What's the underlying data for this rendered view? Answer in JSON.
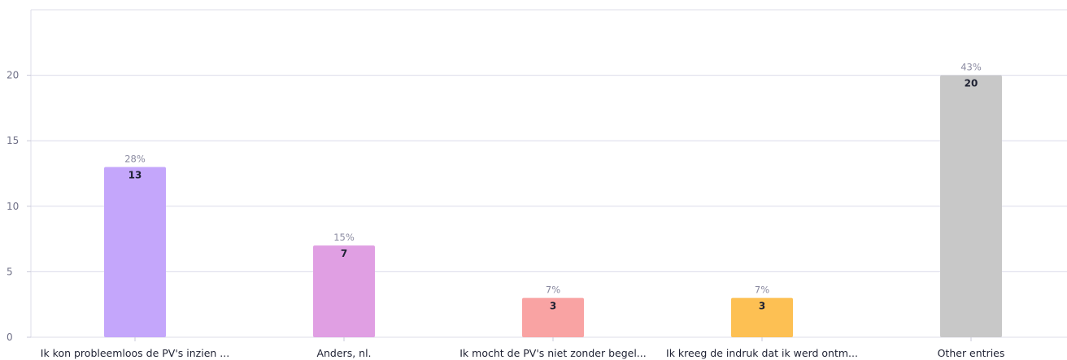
{
  "chart_data": {
    "type": "bar",
    "categories": [
      "Ik kon probleemloos de PV's inzien ...",
      "Anders, nl.",
      "Ik mocht de PV's niet zonder begel...",
      "Ik kreeg de indruk dat ik werd ontm...",
      "Other entries"
    ],
    "values": [
      13,
      7,
      3,
      3,
      20
    ],
    "percentages": [
      "28%",
      "15%",
      "7%",
      "7%",
      "43%"
    ],
    "colors": [
      "#c4a6fb",
      "#e09fe3",
      "#f9a3a3",
      "#fdc053",
      "#c8c8c8"
    ],
    "yticks": [
      0,
      5,
      10,
      15,
      20
    ],
    "ylim": [
      0,
      25
    ],
    "grid": true,
    "title": "",
    "xlabel": "",
    "ylabel": ""
  }
}
